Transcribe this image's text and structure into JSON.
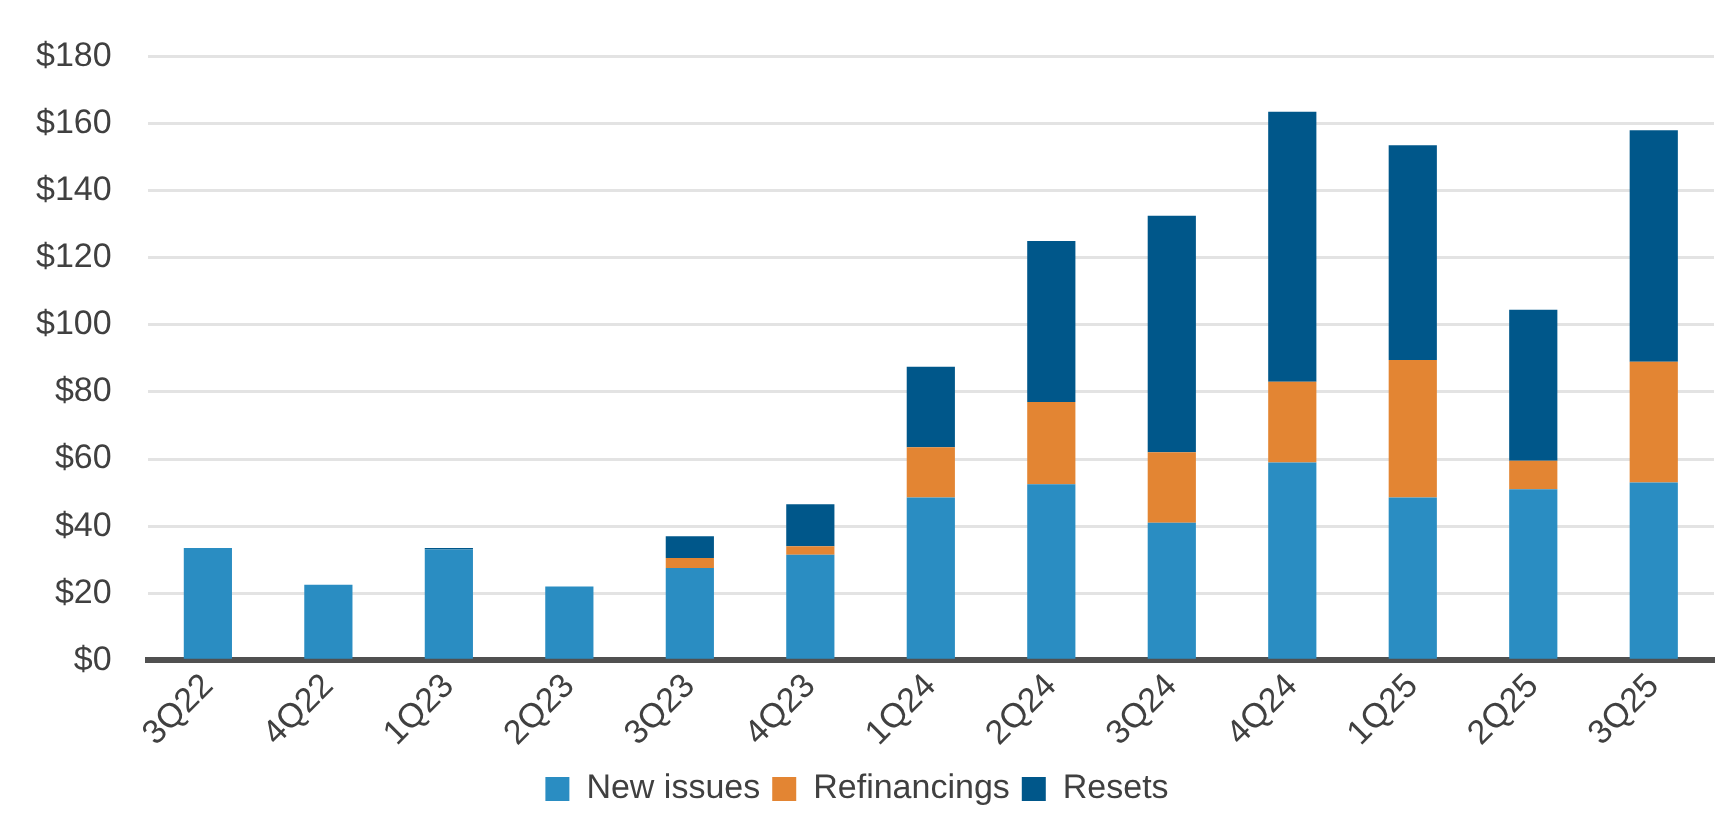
{
  "chart_data": {
    "type": "bar",
    "stacked": true,
    "categories": [
      "3Q22",
      "4Q22",
      "1Q23",
      "2Q23",
      "3Q23",
      "4Q23",
      "1Q24",
      "2Q24",
      "3Q24",
      "4Q24",
      "1Q25",
      "2Q25",
      "3Q25"
    ],
    "series": [
      {
        "name": "New issues",
        "color": "#2a8dc2",
        "values": [
          33.5,
          22.5,
          33,
          22,
          27.5,
          31.5,
          48.5,
          52.5,
          41,
          59,
          48.5,
          51,
          53
        ]
      },
      {
        "name": "Refinancings",
        "color": "#e38533",
        "values": [
          0,
          0,
          0,
          0,
          3,
          2.5,
          15,
          24.5,
          21,
          24,
          41,
          8.5,
          36
        ]
      },
      {
        "name": "Resets",
        "color": "#00578a",
        "values": [
          0,
          0,
          0.5,
          0,
          6.5,
          12.5,
          24,
          48,
          70.5,
          80.5,
          64,
          45,
          69
        ]
      }
    ],
    "ylim": [
      0,
      180
    ],
    "yticks": [
      {
        "value": 0,
        "label": "$0"
      },
      {
        "value": 20,
        "label": "$20"
      },
      {
        "value": 40,
        "label": "$40"
      },
      {
        "value": 60,
        "label": "$60"
      },
      {
        "value": 80,
        "label": "$80"
      },
      {
        "value": 100,
        "label": "$100"
      },
      {
        "value": 120,
        "label": "$120"
      },
      {
        "value": 140,
        "label": "$140"
      },
      {
        "value": 160,
        "label": "$160"
      },
      {
        "value": 180,
        "label": "$180"
      }
    ],
    "grid": "y",
    "legend": "bottom"
  }
}
